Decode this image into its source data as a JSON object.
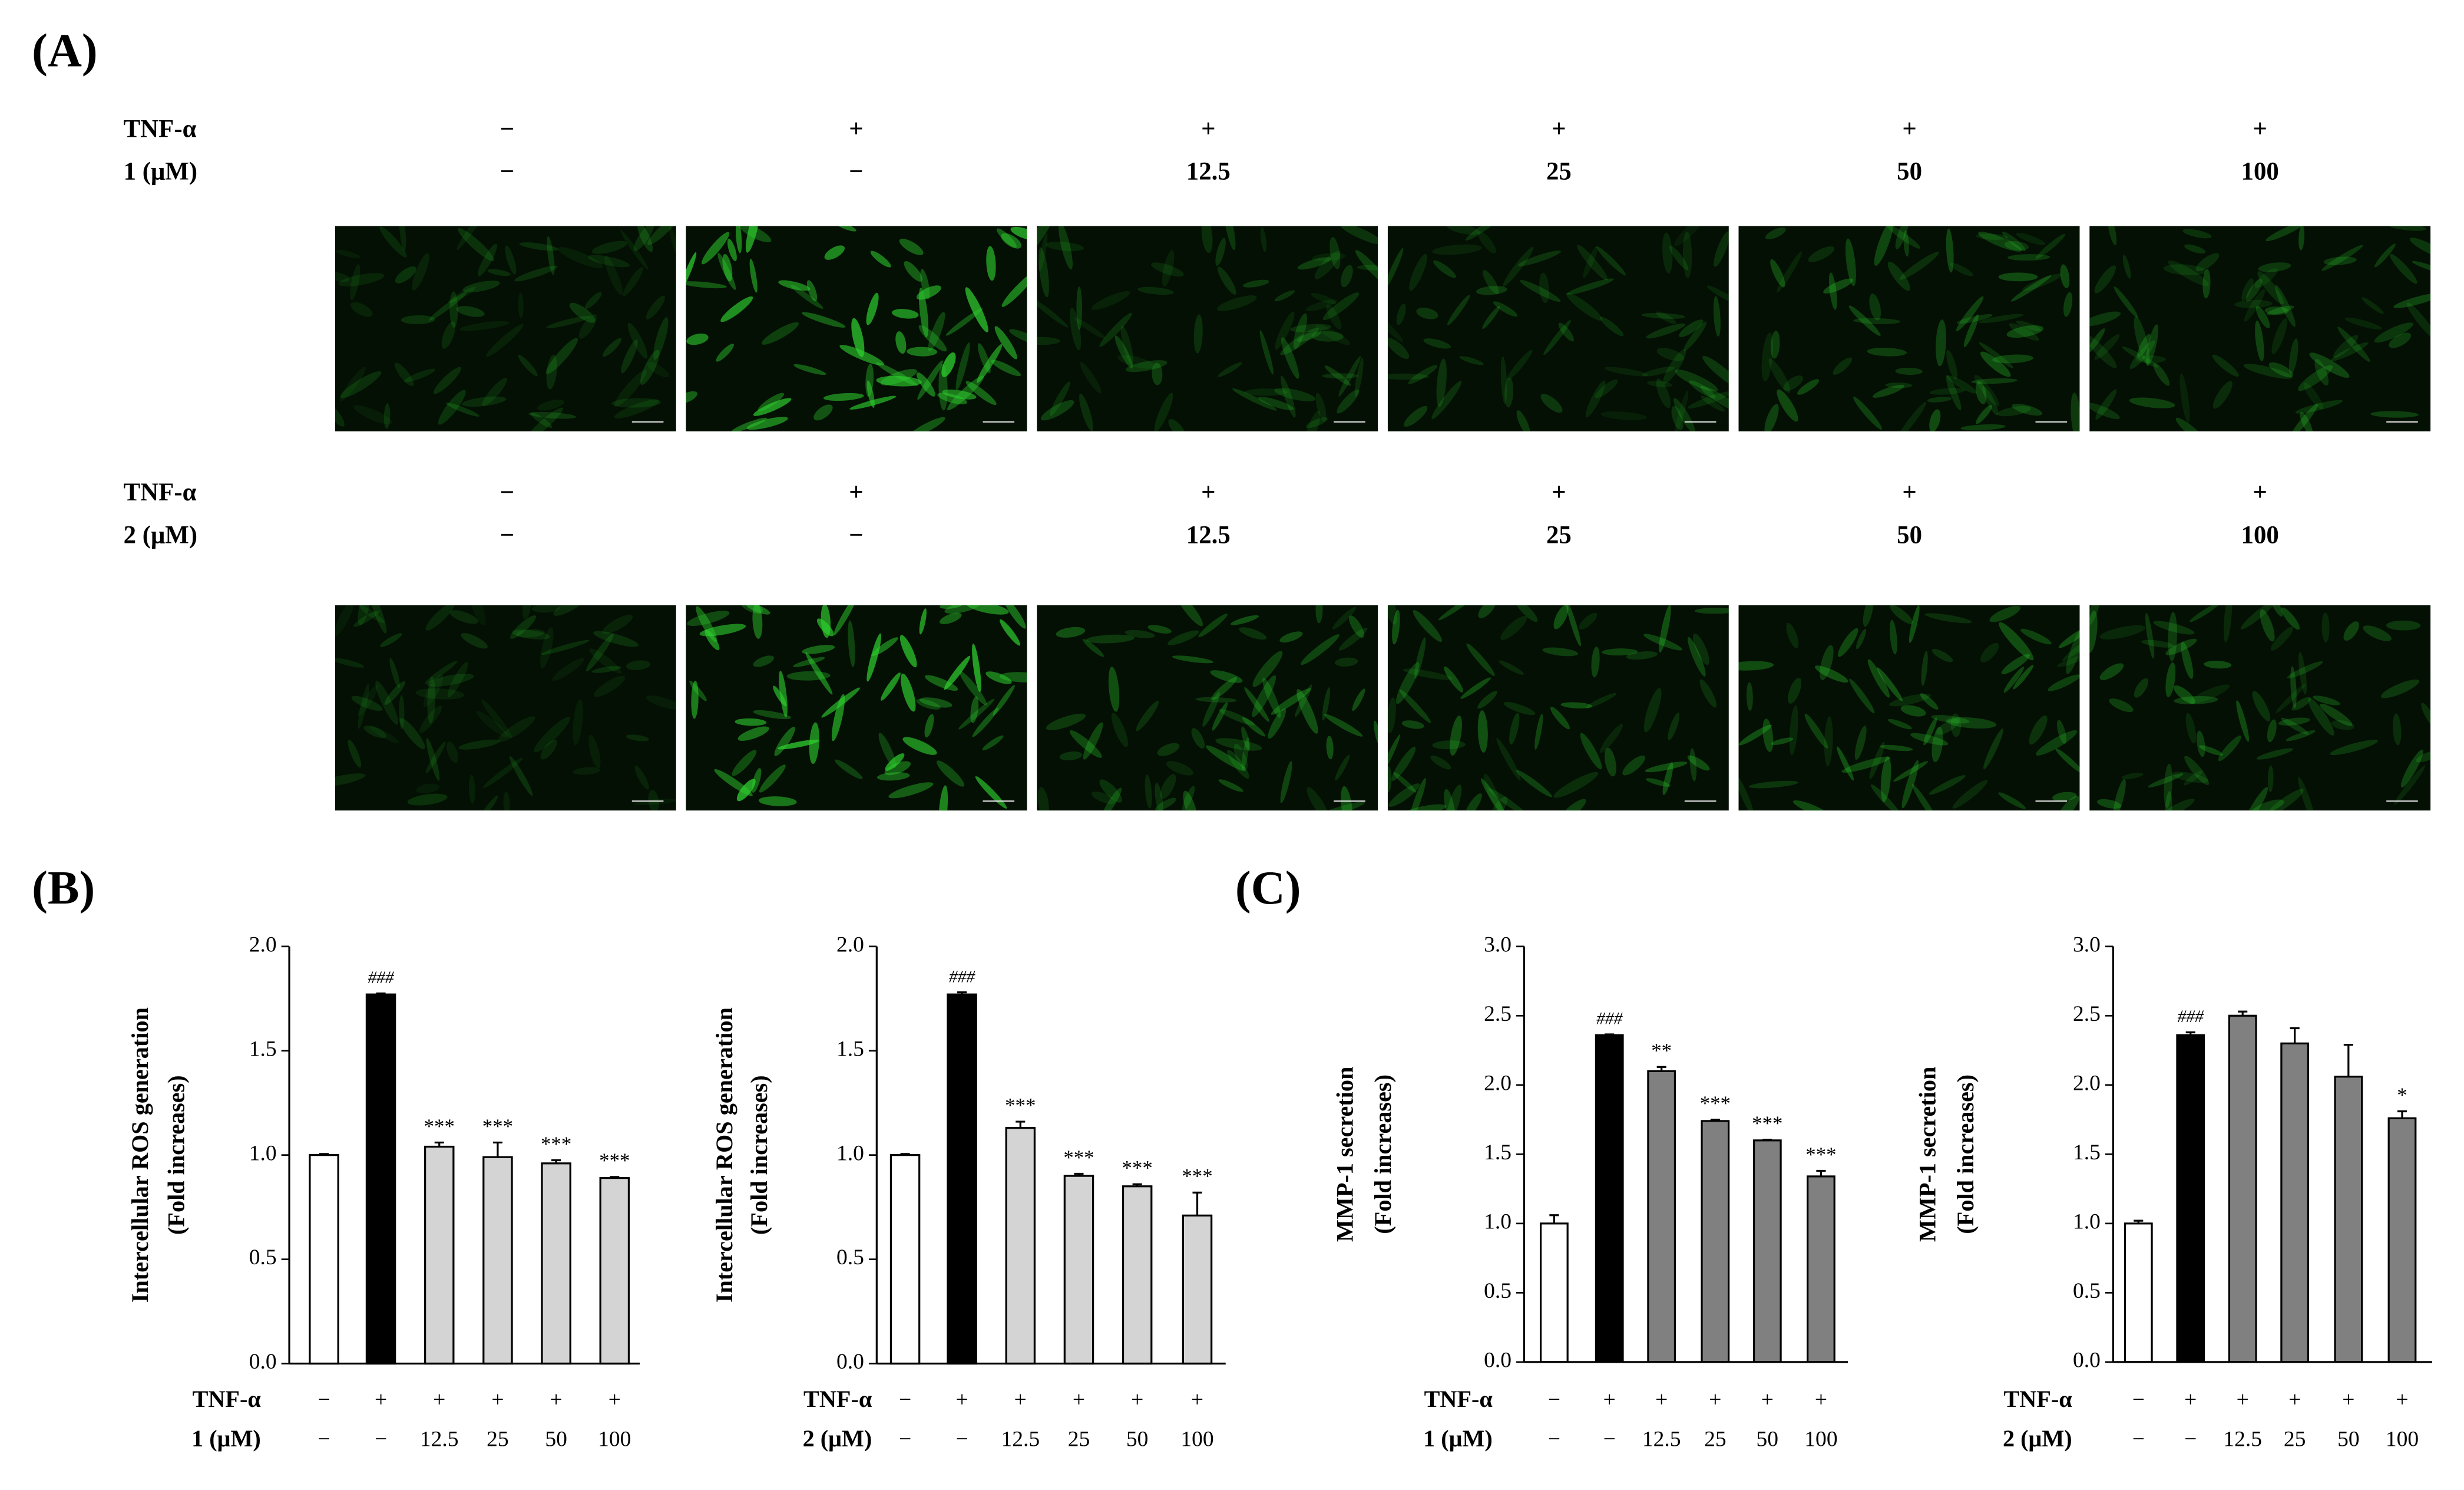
{
  "panel_labels": [
    "(A)",
    "(B)",
    "(C)"
  ],
  "panel_a": {
    "groups": [
      {
        "rows": [
          {
            "label": "TNF-α",
            "values": [
              "−",
              "+",
              "+",
              "+",
              "+",
              "+"
            ]
          },
          {
            "label": "1 (μM)",
            "values": [
              "−",
              "−",
              "12.5",
              "25",
              "50",
              "100"
            ]
          }
        ]
      },
      {
        "rows": [
          {
            "label": "TNF-α",
            "values": [
              "−",
              "+",
              "+",
              "+",
              "+",
              "+"
            ]
          },
          {
            "label": "2 (μM)",
            "values": [
              "−",
              "−",
              "12.5",
              "25",
              "50",
              "100"
            ]
          }
        ]
      }
    ]
  },
  "chart_data": [
    {
      "type": "bar",
      "ylabel": [
        "Intercellular ROS generation",
        "(Fold increases)"
      ],
      "ylim": [
        0,
        2
      ],
      "yticks": [
        {
          "value": 0,
          "label": "0.0"
        },
        0.5,
        {
          "value": 1,
          "label": "1.0"
        },
        1.5,
        {
          "value": 2,
          "label": "2.0"
        }
      ],
      "values": [
        1.0,
        1.77,
        1.04,
        0.99,
        0.96,
        0.89
      ],
      "errors": [
        0.005,
        0.005,
        0.02,
        0.07,
        0.015,
        0.005
      ],
      "annotations": [
        null,
        "###",
        "***",
        "***",
        "***",
        "***"
      ],
      "colors": [
        "#ffffff",
        "#000000",
        "#d4d4d4",
        "#d4d4d4",
        "#d4d4d4",
        "#d4d4d4"
      ],
      "treatment_rows": [
        {
          "label": "TNF-α",
          "values": [
            "−",
            "+",
            "+",
            "+",
            "+",
            "+"
          ]
        },
        {
          "label": "1 (μM)",
          "values": [
            "−",
            "−",
            "12.5",
            "25",
            "50",
            "100"
          ]
        }
      ]
    },
    {
      "type": "bar",
      "ylabel": [
        "Intercellular ROS generation",
        "(Fold increases)"
      ],
      "ylim": [
        0,
        2
      ],
      "yticks": [
        {
          "value": 0,
          "label": "0.0"
        },
        0.5,
        {
          "value": 1,
          "label": "1.0"
        },
        1.5,
        {
          "value": 2,
          "label": "2.0"
        }
      ],
      "values": [
        1.0,
        1.77,
        1.13,
        0.9,
        0.85,
        0.71
      ],
      "errors": [
        0.005,
        0.01,
        0.03,
        0.01,
        0.01,
        0.11
      ],
      "annotations": [
        null,
        "###",
        "***",
        "***",
        "***",
        "***"
      ],
      "colors": [
        "#ffffff",
        "#000000",
        "#d4d4d4",
        "#d4d4d4",
        "#d4d4d4",
        "#d4d4d4"
      ],
      "treatment_rows": [
        {
          "label": "TNF-α",
          "values": [
            "−",
            "+",
            "+",
            "+",
            "+",
            "+"
          ]
        },
        {
          "label": "2 (μM)",
          "values": [
            "−",
            "−",
            "12.5",
            "25",
            "50",
            "100"
          ]
        }
      ]
    },
    {
      "type": "bar",
      "ylabel": [
        "MMP-1 secretion",
        "(Fold increases)"
      ],
      "ylim": [
        0,
        3
      ],
      "yticks": [
        {
          "value": 0,
          "label": "0.0"
        },
        0.5,
        {
          "value": 1,
          "label": "1.0"
        },
        1.5,
        {
          "value": 2,
          "label": "2.0"
        },
        2.5,
        {
          "value": 3,
          "label": "3.0"
        }
      ],
      "values": [
        1.0,
        2.36,
        2.1,
        1.74,
        1.6,
        1.34
      ],
      "errors": [
        0.06,
        0.005,
        0.03,
        0.01,
        0.005,
        0.04
      ],
      "annotations": [
        null,
        "###",
        "**",
        "***",
        "***",
        "***"
      ],
      "colors": [
        "#ffffff",
        "#000000",
        "#808080",
        "#808080",
        "#808080",
        "#808080"
      ],
      "treatment_rows": [
        {
          "label": "TNF-α",
          "values": [
            "−",
            "+",
            "+",
            "+",
            "+",
            "+"
          ]
        },
        {
          "label": "1 (μM)",
          "values": [
            "−",
            "−",
            "12.5",
            "25",
            "50",
            "100"
          ]
        }
      ]
    },
    {
      "type": "bar",
      "ylabel": [
        "MMP-1 secretion",
        "(Fold increases)"
      ],
      "ylim": [
        0,
        3
      ],
      "yticks": [
        {
          "value": 0,
          "label": "0.0"
        },
        0.5,
        {
          "value": 1,
          "label": "1.0"
        },
        1.5,
        {
          "value": 2,
          "label": "2.0"
        },
        2.5,
        {
          "value": 3,
          "label": "3.0"
        }
      ],
      "values": [
        1.0,
        2.36,
        2.5,
        2.3,
        2.06,
        1.76
      ],
      "errors": [
        0.02,
        0.02,
        0.03,
        0.11,
        0.23,
        0.05
      ],
      "annotations": [
        null,
        "###",
        null,
        null,
        null,
        "*"
      ],
      "colors": [
        "#ffffff",
        "#000000",
        "#808080",
        "#808080",
        "#808080",
        "#808080"
      ],
      "treatment_rows": [
        {
          "label": "TNF-α",
          "values": [
            "−",
            "+",
            "+",
            "+",
            "+",
            "+"
          ]
        },
        {
          "label": "2 (μM)",
          "values": [
            "−",
            "−",
            "12.5",
            "25",
            "50",
            "100"
          ]
        }
      ]
    }
  ]
}
